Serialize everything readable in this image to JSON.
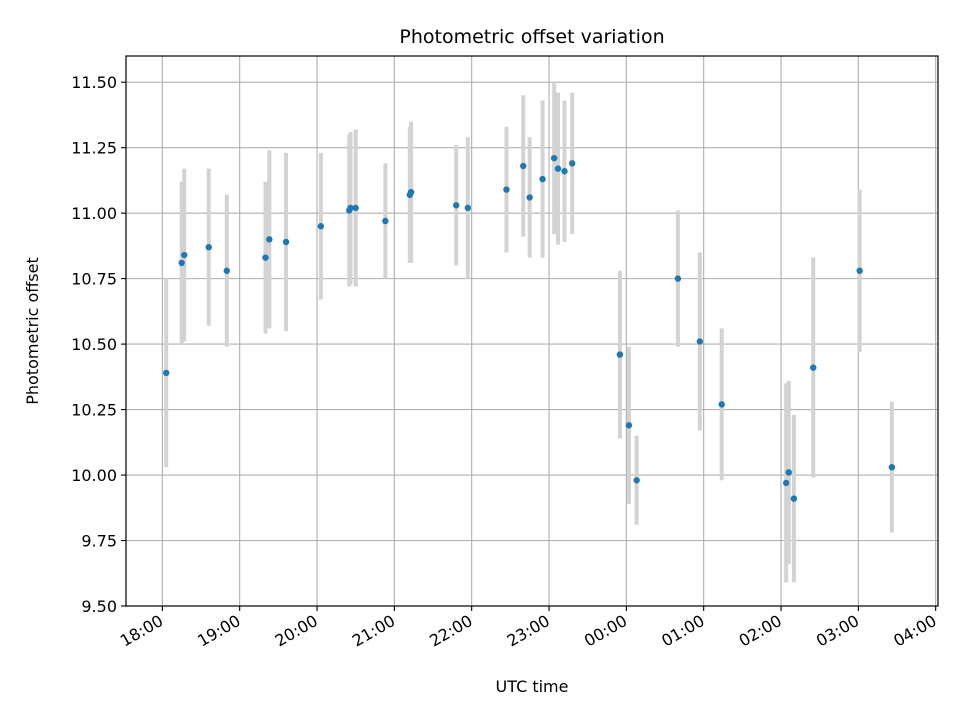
{
  "chart_data": {
    "type": "scatter",
    "title": "Photometric offset variation",
    "xlabel": "UTC time",
    "ylabel": "Photometric offset",
    "grid": true,
    "xlim_hours": [
      17.53,
      28.03
    ],
    "ylim": [
      9.5,
      11.6
    ],
    "x_ticks": [
      {
        "value": 18,
        "label": "18:00"
      },
      {
        "value": 19,
        "label": "19:00"
      },
      {
        "value": 20,
        "label": "20:00"
      },
      {
        "value": 21,
        "label": "21:00"
      },
      {
        "value": 22,
        "label": "22:00"
      },
      {
        "value": 23,
        "label": "23:00"
      },
      {
        "value": 24,
        "label": "00:00"
      },
      {
        "value": 25,
        "label": "01:00"
      },
      {
        "value": 26,
        "label": "02:00"
      },
      {
        "value": 27,
        "label": "03:00"
      },
      {
        "value": 28,
        "label": "04:00"
      }
    ],
    "y_ticks": [
      "9.50",
      "9.75",
      "10.00",
      "10.25",
      "10.50",
      "10.75",
      "11.00",
      "11.25",
      "11.50"
    ],
    "point_color": "#1f77b4",
    "errorbar_color": "#d3d3d3",
    "points": [
      {
        "t": "18:03",
        "y": 10.39,
        "err": 0.36
      },
      {
        "t": "18:15",
        "y": 10.81,
        "err": 0.31
      },
      {
        "t": "18:17",
        "y": 10.84,
        "err": 0.33
      },
      {
        "t": "18:36",
        "y": 10.87,
        "err": 0.3
      },
      {
        "t": "18:50",
        "y": 10.78,
        "err": 0.29
      },
      {
        "t": "19:20",
        "y": 10.83,
        "err": 0.29
      },
      {
        "t": "19:23",
        "y": 10.9,
        "err": 0.34
      },
      {
        "t": "19:36",
        "y": 10.89,
        "err": 0.34
      },
      {
        "t": "20:03",
        "y": 10.95,
        "err": 0.28
      },
      {
        "t": "20:25",
        "y": 11.01,
        "err": 0.29
      },
      {
        "t": "20:26",
        "y": 11.02,
        "err": 0.29
      },
      {
        "t": "20:30",
        "y": 11.02,
        "err": 0.3
      },
      {
        "t": "20:53",
        "y": 10.97,
        "err": 0.22
      },
      {
        "t": "21:12",
        "y": 11.07,
        "err": 0.26
      },
      {
        "t": "21:13",
        "y": 11.08,
        "err": 0.27
      },
      {
        "t": "21:48",
        "y": 11.03,
        "err": 0.23
      },
      {
        "t": "21:57",
        "y": 11.02,
        "err": 0.27
      },
      {
        "t": "22:27",
        "y": 11.09,
        "err": 0.24
      },
      {
        "t": "22:40",
        "y": 11.18,
        "err": 0.27
      },
      {
        "t": "22:45",
        "y": 11.06,
        "err": 0.23
      },
      {
        "t": "22:55",
        "y": 11.13,
        "err": 0.3
      },
      {
        "t": "23:04",
        "y": 11.21,
        "err": 0.29
      },
      {
        "t": "23:07",
        "y": 11.17,
        "err": 0.29
      },
      {
        "t": "23:12",
        "y": 11.16,
        "err": 0.27
      },
      {
        "t": "23:18",
        "y": 11.19,
        "err": 0.27
      },
      {
        "t": "23:55",
        "y": 10.46,
        "err": 0.32
      },
      {
        "t": "00:02",
        "y": 10.19,
        "err": 0.3
      },
      {
        "t": "00:08",
        "y": 9.98,
        "err": 0.17
      },
      {
        "t": "00:40",
        "y": 10.75,
        "err": 0.26
      },
      {
        "t": "00:57",
        "y": 10.51,
        "err": 0.34
      },
      {
        "t": "01:14",
        "y": 10.27,
        "err": 0.29
      },
      {
        "t": "02:04",
        "y": 9.97,
        "err": 0.38
      },
      {
        "t": "02:06",
        "y": 10.01,
        "err": 0.35
      },
      {
        "t": "02:10",
        "y": 9.91,
        "err": 0.32
      },
      {
        "t": "02:25",
        "y": 10.41,
        "err": 0.42
      },
      {
        "t": "03:01",
        "y": 10.78,
        "err": 0.31
      },
      {
        "t": "03:26",
        "y": 10.03,
        "err": 0.25
      }
    ]
  }
}
